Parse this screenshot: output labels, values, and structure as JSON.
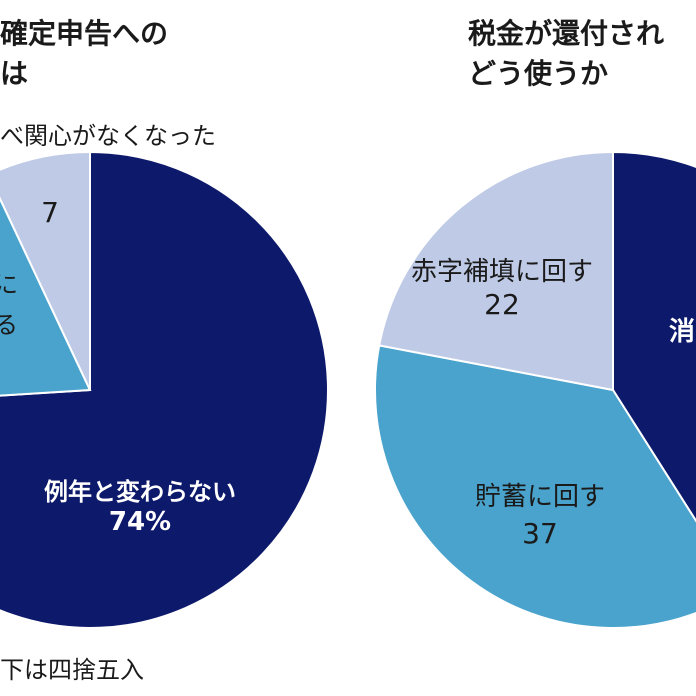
{
  "chart_data": [
    {
      "type": "pie",
      "title_lines": [
        "確定申告への",
        "は"
      ],
      "annotation": "べ関心がなくなった",
      "footnote": "下は四捨五入",
      "colors": [
        "#0d1a6b",
        "#4aa3cc",
        "#bfcae6"
      ],
      "slices": [
        {
          "label": "例年と変わらない",
          "value": 74,
          "value_text": "74%"
        },
        {
          "label": "に\nる",
          "value": 19,
          "value_text": ""
        },
        {
          "label": "",
          "value": 7,
          "value_text": "7"
        }
      ]
    },
    {
      "type": "pie",
      "title_lines": [
        "税金が還付され",
        "どう使うか"
      ],
      "colors": [
        "#0d1a6b",
        "#4aa3cc",
        "#bfcae6"
      ],
      "slices": [
        {
          "label": "消",
          "value": 41,
          "value_text": ""
        },
        {
          "label": "貯蓄に回す",
          "value": 37,
          "value_text": "37"
        },
        {
          "label": "赤字補填に回す",
          "value": 22,
          "value_text": "22"
        }
      ]
    }
  ]
}
